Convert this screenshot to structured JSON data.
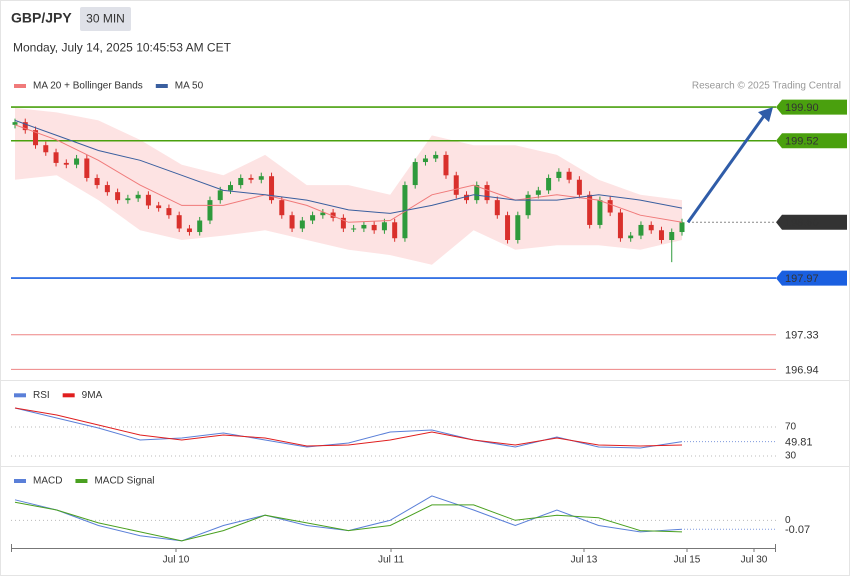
{
  "header": {
    "symbol": "GBP/JPY",
    "interval": "30 MIN",
    "datetime": "Monday, July 14, 2025 10:45:53 AM CET",
    "credit": "Research © 2025 Trading Central"
  },
  "x_axis": {
    "labels": [
      "Jul 10",
      "Jul 11",
      "Jul 13",
      "Jul 15",
      "Jul 30"
    ]
  },
  "chart_data": [
    {
      "type": "candlestick",
      "up_color": "#2e9a3c",
      "down_color": "#d9302c",
      "ylim": [
        196.82,
        199.98
      ],
      "open": [
        199.7,
        199.73,
        199.64,
        199.47,
        199.39,
        199.27,
        199.25,
        199.32,
        199.1,
        199.02,
        198.94,
        198.85,
        198.87,
        198.91,
        198.79,
        198.76,
        198.68,
        198.53,
        198.49,
        198.62,
        198.85,
        198.96,
        199.02,
        199.1,
        199.08,
        199.12,
        198.85,
        198.68,
        198.53,
        198.62,
        198.68,
        198.71,
        198.65,
        198.53,
        198.53,
        198.57,
        198.51,
        198.6,
        198.42,
        199.02,
        199.28,
        199.32,
        199.36,
        199.13,
        198.91,
        198.85,
        199.02,
        198.85,
        198.68,
        198.4,
        198.68,
        198.91,
        198.96,
        199.1,
        199.17,
        199.08,
        198.91,
        198.57,
        198.85,
        198.71,
        198.42,
        198.45,
        198.57,
        198.51,
        198.4,
        198.49
      ],
      "high": [
        199.77,
        199.77,
        199.68,
        199.51,
        199.43,
        199.31,
        199.36,
        199.36,
        199.14,
        199.06,
        198.98,
        198.91,
        198.95,
        198.95,
        198.83,
        198.8,
        198.72,
        198.57,
        198.66,
        198.89,
        199.0,
        199.06,
        199.14,
        199.14,
        199.16,
        199.16,
        198.89,
        198.72,
        198.66,
        198.72,
        198.75,
        198.75,
        198.69,
        198.57,
        198.61,
        198.61,
        198.64,
        198.64,
        199.06,
        199.32,
        199.36,
        199.4,
        199.4,
        199.17,
        198.95,
        199.06,
        199.06,
        198.89,
        198.72,
        198.72,
        198.95,
        199.0,
        199.14,
        199.21,
        199.21,
        199.12,
        198.95,
        198.89,
        198.89,
        198.75,
        198.49,
        198.61,
        198.61,
        198.55,
        198.53,
        198.64
      ],
      "low": [
        199.66,
        199.6,
        199.43,
        199.35,
        199.23,
        199.21,
        199.21,
        199.06,
        198.98,
        198.9,
        198.81,
        198.81,
        198.83,
        198.75,
        198.72,
        198.64,
        198.49,
        198.45,
        198.45,
        198.58,
        198.81,
        198.92,
        198.98,
        199.04,
        199.04,
        198.81,
        198.64,
        198.49,
        198.49,
        198.58,
        198.64,
        198.61,
        198.49,
        198.49,
        198.49,
        198.47,
        198.47,
        198.38,
        198.38,
        198.98,
        199.24,
        199.28,
        199.09,
        198.87,
        198.81,
        198.81,
        198.81,
        198.64,
        198.36,
        198.36,
        198.64,
        198.87,
        198.92,
        199.06,
        199.04,
        198.87,
        198.53,
        198.53,
        198.67,
        198.38,
        198.38,
        198.41,
        198.47,
        198.36,
        198.15,
        198.45
      ],
      "close": [
        199.73,
        199.64,
        199.47,
        199.39,
        199.27,
        199.25,
        199.32,
        199.1,
        199.02,
        198.94,
        198.85,
        198.87,
        198.91,
        198.79,
        198.76,
        198.68,
        198.53,
        198.49,
        198.62,
        198.85,
        198.96,
        199.02,
        199.1,
        199.08,
        199.12,
        198.85,
        198.68,
        198.53,
        198.62,
        198.68,
        198.71,
        198.65,
        198.53,
        198.53,
        198.57,
        198.51,
        198.6,
        198.42,
        199.02,
        199.28,
        199.32,
        199.36,
        199.13,
        198.91,
        198.85,
        199.02,
        198.85,
        198.68,
        198.4,
        198.68,
        198.91,
        198.96,
        199.1,
        199.17,
        199.08,
        198.91,
        198.57,
        198.85,
        198.71,
        198.42,
        198.45,
        198.57,
        198.51,
        198.4,
        198.49,
        198.6
      ],
      "series": [
        {
          "name": "MA 20 + Bollinger Bands",
          "color": "#f07a7a",
          "band_color": "#fde3e3",
          "values": [
            199.7,
            199.53,
            199.3,
            199.02,
            198.79,
            198.79,
            198.91,
            198.79,
            198.6,
            198.62,
            198.91,
            199.02,
            198.85,
            198.91,
            198.85,
            198.68,
            198.6
          ],
          "upper": [
            199.89,
            199.84,
            199.75,
            199.53,
            199.25,
            199.13,
            199.36,
            199.02,
            199.02,
            198.91,
            199.58,
            199.47,
            199.47,
            199.36,
            199.08,
            198.91,
            198.85
          ],
          "lower": [
            199.08,
            199.13,
            198.85,
            198.51,
            198.4,
            198.45,
            198.51,
            198.4,
            198.29,
            198.23,
            198.12,
            198.51,
            198.29,
            198.34,
            198.34,
            198.29,
            198.4
          ]
        },
        {
          "name": "MA 50",
          "color": "#3a5f9f",
          "values": [
            199.75,
            199.58,
            199.41,
            199.3,
            199.13,
            198.96,
            198.91,
            198.85,
            198.74,
            198.7,
            198.79,
            198.91,
            198.85,
            198.85,
            198.91,
            198.85,
            198.76
          ]
        }
      ],
      "levels": [
        {
          "value": 199.9,
          "label": "199.90",
          "color": "#4aa00e",
          "kind": "box"
        },
        {
          "value": 199.52,
          "label": "199.52",
          "color": "#4aa00e",
          "kind": "box"
        },
        {
          "value": 198.6,
          "label": "198.60",
          "color": "#333333",
          "kind": "current"
        },
        {
          "value": 197.97,
          "label": "197.97",
          "color": "#1a5fe0",
          "kind": "box"
        },
        {
          "value": 197.33,
          "label": "197.33",
          "color": "#e02020",
          "kind": "text"
        },
        {
          "value": 196.94,
          "label": "196.94",
          "color": "#e02020",
          "kind": "text"
        }
      ]
    },
    {
      "type": "line",
      "ylim": [
        22,
        102
      ],
      "yticks": [
        70,
        30
      ],
      "current": {
        "value": 49.81,
        "label": "49.81",
        "color": "#4a6fd0"
      },
      "series": [
        {
          "name": "RSI",
          "color": "#5a7fd8",
          "values": [
            96.2,
            82.4,
            68.6,
            52.1,
            54.8,
            61.7,
            52.1,
            42.4,
            47.9,
            63.1,
            65.9,
            52.1,
            42.4,
            56.2,
            42.4,
            41.0,
            49.81
          ]
        },
        {
          "name": "9MA",
          "color": "#e01e1e",
          "values": [
            96.2,
            86.6,
            72.8,
            59.0,
            52.1,
            59.0,
            54.8,
            43.8,
            45.2,
            52.1,
            63.1,
            52.1,
            45.2,
            54.8,
            45.2,
            43.8,
            45.2
          ]
        }
      ]
    },
    {
      "type": "line",
      "ylim": [
        -0.2,
        0.24
      ],
      "yticks": [
        0
      ],
      "current": {
        "value": -0.07,
        "label": "-0.07",
        "color": "#4a6fd0"
      },
      "series": [
        {
          "name": "MACD",
          "color": "#5a7fd8",
          "values": [
            0.16,
            0.08,
            -0.04,
            -0.12,
            -0.16,
            -0.04,
            0.04,
            -0.04,
            -0.08,
            0.0,
            0.19,
            0.08,
            -0.04,
            0.08,
            -0.04,
            -0.09,
            -0.07
          ]
        },
        {
          "name": "MACD Signal",
          "color": "#4aa020",
          "values": [
            0.14,
            0.08,
            -0.02,
            -0.09,
            -0.16,
            -0.08,
            0.04,
            -0.02,
            -0.08,
            -0.04,
            0.12,
            0.12,
            0.0,
            0.04,
            0.02,
            -0.08,
            -0.09
          ]
        }
      ]
    }
  ]
}
